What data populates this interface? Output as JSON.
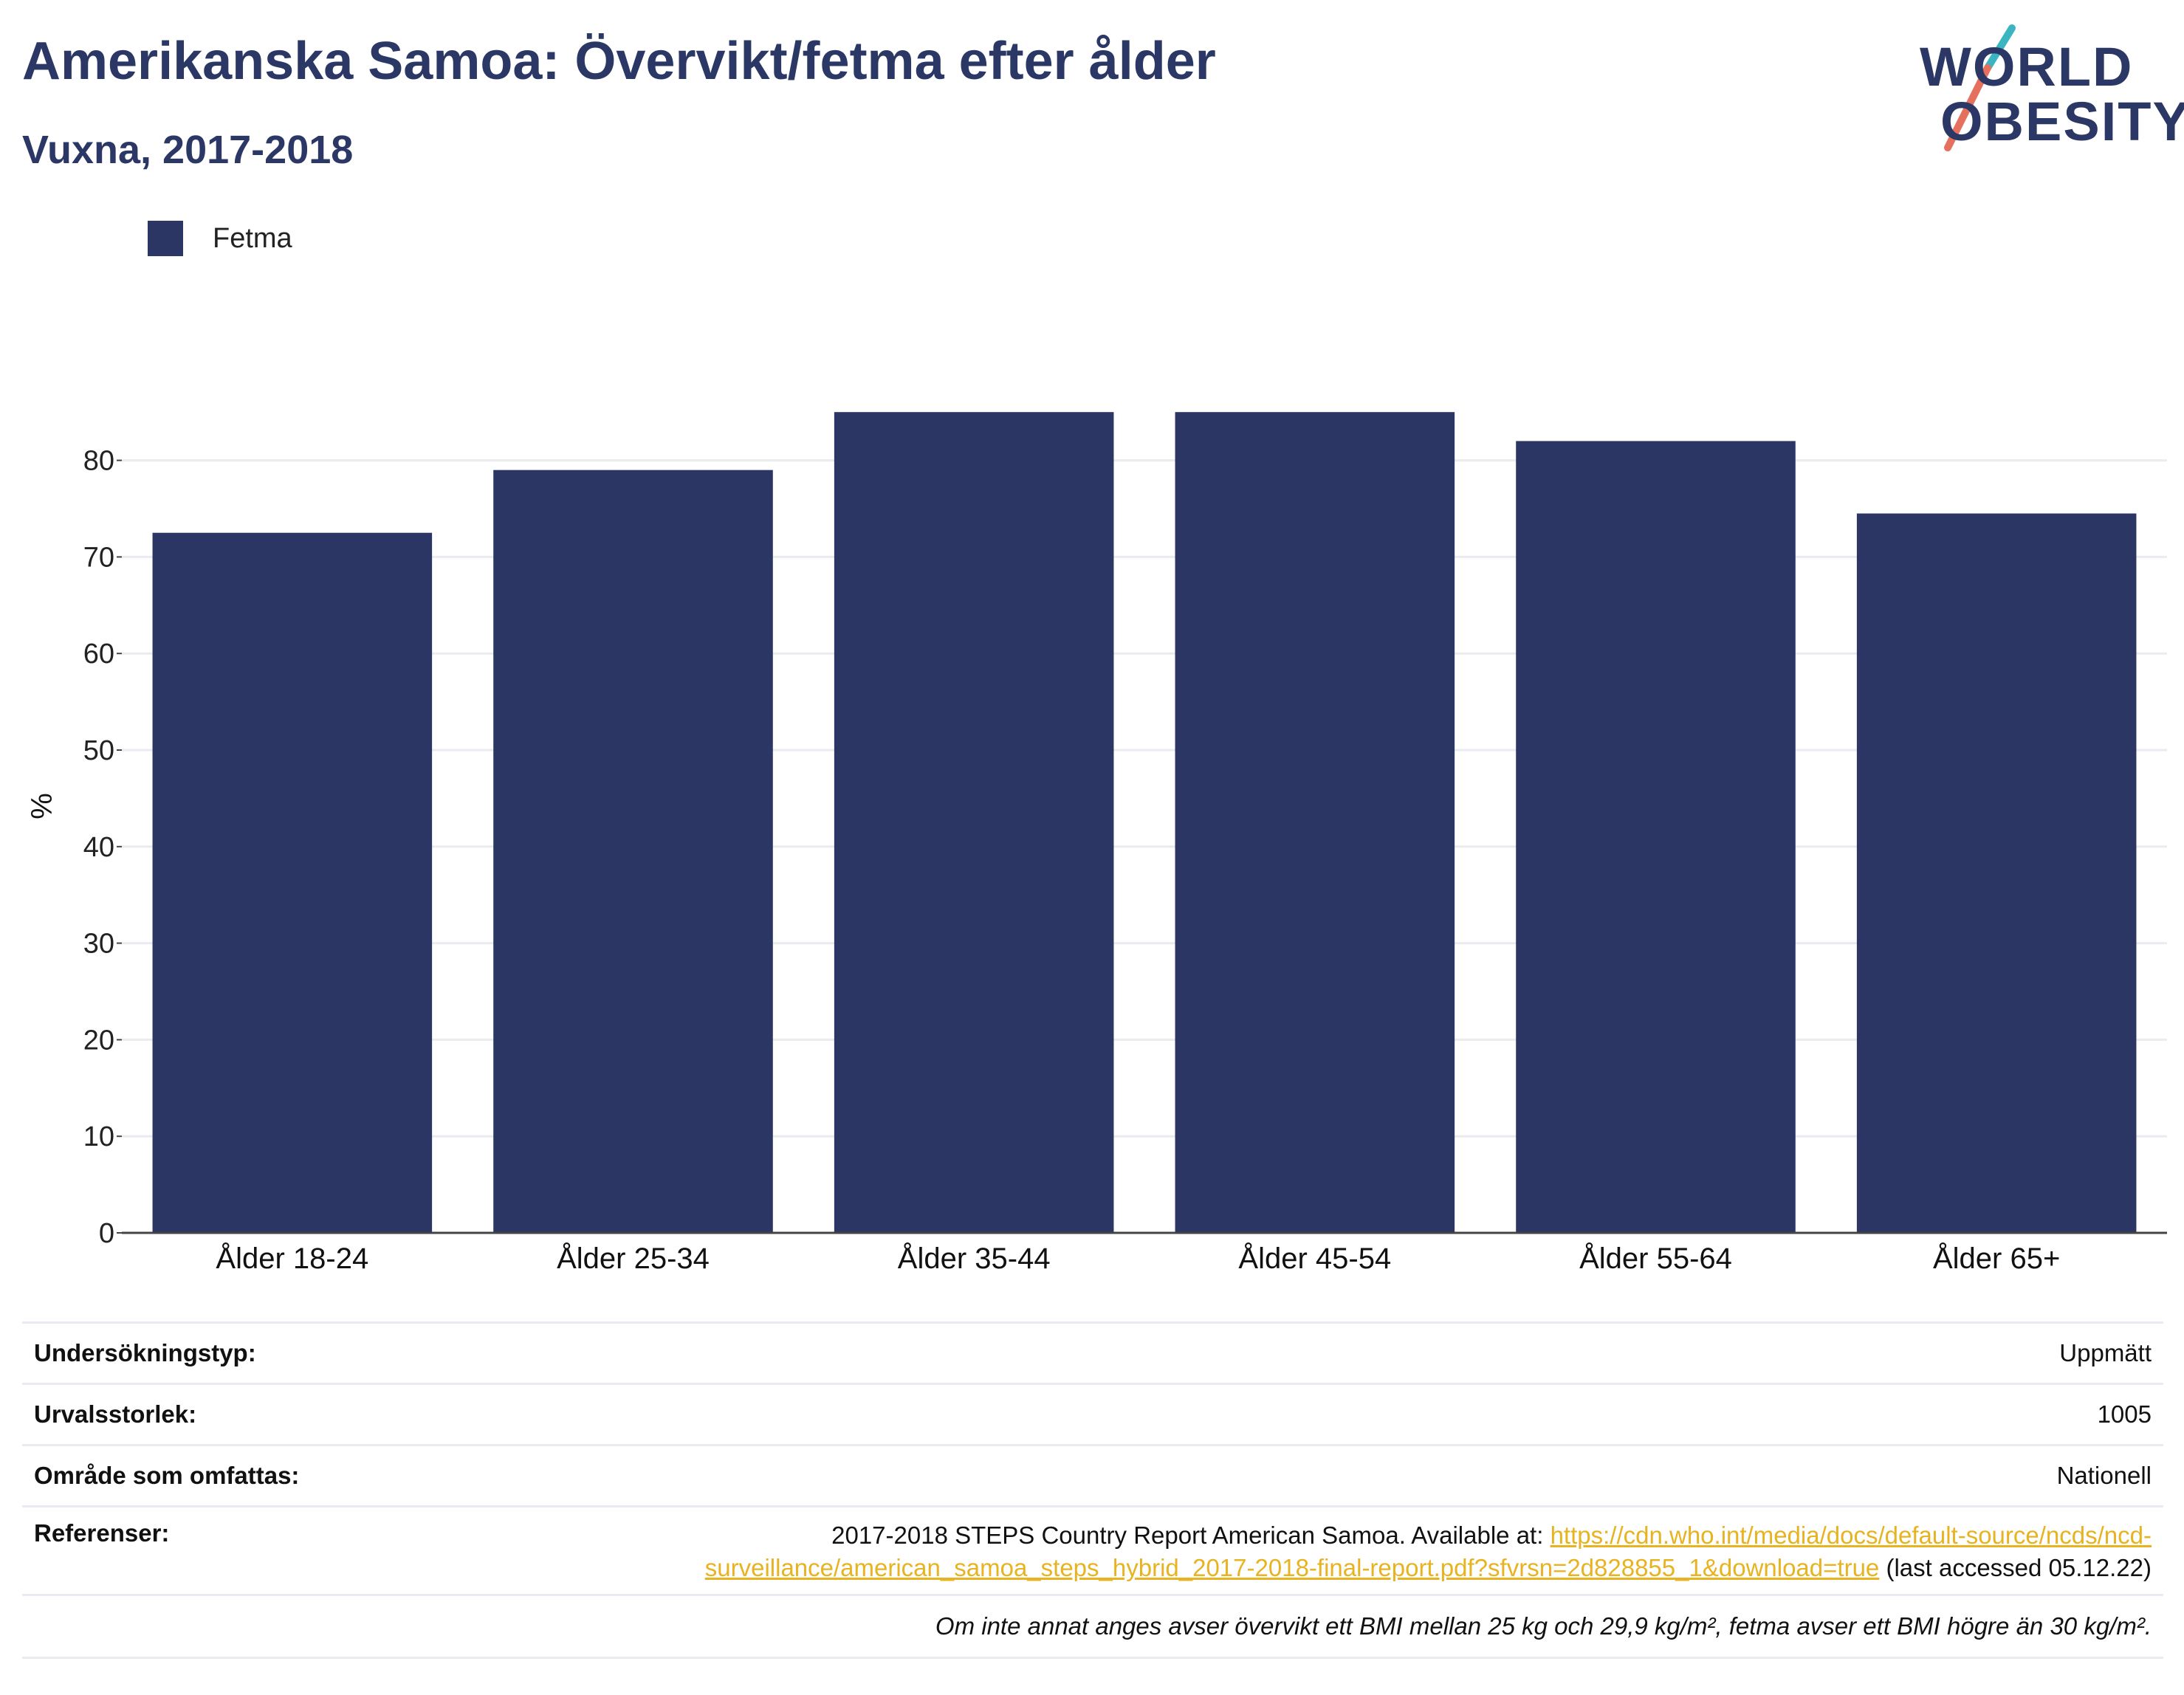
{
  "header": {
    "title": "Amerikanska Samoa: Övervikt/fetma efter ålder",
    "subtitle": "Vuxna, 2017-2018"
  },
  "logo": {
    "line1": "WORLD",
    "line2": "OBESITY",
    "colors": {
      "text": "#2b3764",
      "slash_top": "#3bb6c0",
      "slash_bottom": "#e5705d"
    }
  },
  "legend": {
    "label": "Fetma",
    "color": "#2b3664"
  },
  "chart_data": {
    "type": "bar",
    "categories": [
      "Ålder 18-24",
      "Ålder 25-34",
      "Ålder 35-44",
      "Ålder 45-54",
      "Ålder 55-64",
      "Ålder 65+"
    ],
    "series": [
      {
        "name": "Fetma",
        "values": [
          72.5,
          79,
          85,
          85,
          82,
          74.5
        ],
        "color": "#2b3664"
      }
    ],
    "ylabel": "%",
    "ylim": [
      0,
      90
    ],
    "yticks": [
      0,
      10,
      20,
      30,
      40,
      50,
      60,
      70,
      80
    ],
    "grid": true,
    "legend_position": "top-left"
  },
  "meta": {
    "survey_type_label": "Undersökningstyp:",
    "survey_type_value": "Uppmätt",
    "sample_size_label": "Urvalsstorlek:",
    "sample_size_value": "1005",
    "coverage_label": "Område som omfattas:",
    "coverage_value": "Nationell",
    "references_label": "Referenser:",
    "references_text": "2017-2018 STEPS Country Report American Samoa. Available at: ",
    "references_link_part1": "https://cdn.who.int/media/docs/default-source/ncds/ncd-",
    "references_link_part2": "surveillance/american_samoa_steps_hybrid_2017-2018-final-report.pdf?sfvrsn=2d828855_1&download=true",
    "references_suffix": " (last accessed 05.12.22)",
    "footnote": "Om inte annat anges avser övervikt ett BMI mellan 25 kg och 29,9 kg/m², fetma avser ett BMI högre än 30 kg/m²."
  }
}
